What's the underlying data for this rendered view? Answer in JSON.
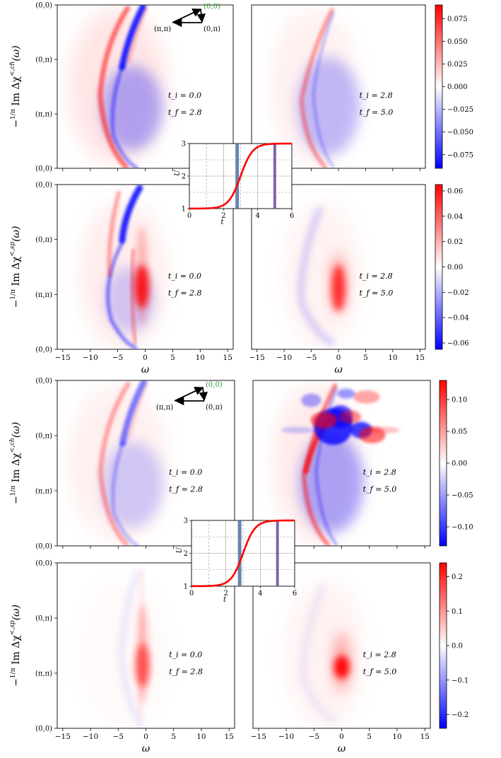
{
  "figure": {
    "x_axis_label": "ω",
    "path_points": [
      "(0,0)",
      "(0,π)",
      "(π,π)",
      "(0,0)"
    ],
    "inset_path_labels": {
      "start": "(0,0)",
      "corner": "(0,π)",
      "diag": "(π,π)"
    },
    "colors": {
      "positive": "#ff0000",
      "negative": "#0000ff",
      "zero": "#ffffff",
      "ramp": "#ff0000",
      "ti_marker": "#4f6fa0",
      "tf_marker": "#6a4b9e",
      "inset_green": "#2a9a2a"
    }
  },
  "chart_data": [
    {
      "type": "heatmap",
      "ylabel": "−(1/π) Im Δχ<,ch(ω)",
      "ylabel_parts": {
        "lead": "−",
        "num": "1",
        "den": "π",
        "main": "Im Δχ",
        "sup": "<,ch",
        "tail": "(ω)"
      },
      "x": {
        "range": [
          -16,
          16
        ],
        "ticks": [
          -15,
          -10,
          -5,
          0,
          5,
          10,
          15
        ]
      },
      "colorbar": {
        "range": [
          -0.09,
          0.09
        ],
        "ticks": [
          0.075,
          0.05,
          0.025,
          0.0,
          -0.025,
          -0.05,
          -0.075
        ],
        "tick_labels": [
          "0.075",
          "0.050",
          "0.025",
          "0.000",
          "−0.025",
          "−0.050",
          "−0.075"
        ]
      },
      "panels": [
        {
          "t_i": "t_i = 0.0",
          "t_f": "t_f = 2.8"
        },
        {
          "t_i": "t_i = 2.8",
          "t_f": "t_f = 5.0"
        }
      ],
      "show_xticks": false
    },
    {
      "type": "heatmap",
      "ylabel": "−(1/π) Im Δχ<,sp(ω)",
      "ylabel_parts": {
        "lead": "−",
        "num": "1",
        "den": "π",
        "main": "Im Δχ",
        "sup": "<,sp",
        "tail": "(ω)"
      },
      "x": {
        "range": [
          -16,
          16
        ],
        "ticks": [
          -15,
          -10,
          -5,
          0,
          5,
          10,
          15
        ]
      },
      "colorbar": {
        "range": [
          -0.065,
          0.065
        ],
        "ticks": [
          0.06,
          0.04,
          0.02,
          0.0,
          -0.02,
          -0.04,
          -0.06
        ],
        "tick_labels": [
          "0.06",
          "0.04",
          "0.02",
          "0.00",
          "−0.02",
          "−0.04",
          "−0.06"
        ]
      },
      "panels": [
        {
          "t_i": "t_i = 0.0",
          "t_f": "t_f = 2.8"
        },
        {
          "t_i": "t_i = 2.8",
          "t_f": "t_f = 5.0"
        }
      ],
      "show_xticks": true
    },
    {
      "type": "heatmap",
      "ylabel": "−(1/π) Im Δχ<,ch(ω)",
      "ylabel_parts": {
        "lead": "−",
        "num": "1",
        "den": "π",
        "main": "Im Δχ",
        "sup": "<,ch",
        "tail": "(ω)"
      },
      "x": {
        "range": [
          -16,
          16
        ],
        "ticks": [
          -15,
          -10,
          -5,
          0,
          5,
          10,
          15
        ]
      },
      "colorbar": {
        "range": [
          -0.13,
          0.13
        ],
        "ticks": [
          0.1,
          0.05,
          0.0,
          -0.05,
          -0.1
        ],
        "tick_labels": [
          "0.10",
          "0.05",
          "0.00",
          "−0.05",
          "−0.10"
        ]
      },
      "panels": [
        {
          "t_i": "t_i = 0.0",
          "t_f": "t_f = 2.8"
        },
        {
          "t_i": "t_i = 2.8",
          "t_f": "t_f = 5.0"
        }
      ],
      "show_xticks": false
    },
    {
      "type": "heatmap",
      "ylabel": "−(1/π) Im Δχ<,sp(ω)",
      "ylabel_parts": {
        "lead": "−",
        "num": "1",
        "den": "π",
        "main": "Im Δχ",
        "sup": "<,sp",
        "tail": "(ω)"
      },
      "x": {
        "range": [
          -16,
          16
        ],
        "ticks": [
          -15,
          -10,
          -5,
          0,
          5,
          10,
          15
        ]
      },
      "colorbar": {
        "range": [
          -0.24,
          0.24
        ],
        "ticks": [
          0.2,
          0.1,
          0.0,
          -0.1,
          -0.2
        ],
        "tick_labels": [
          "0.2",
          "0.1",
          "0.0",
          "−0.1",
          "−0.2"
        ]
      },
      "panels": [
        {
          "t_i": "t_i = 0.0",
          "t_f": "t_f = 2.8"
        },
        {
          "t_i": "t_i = 2.8",
          "t_f": "t_f = 5.0"
        }
      ],
      "show_xticks": true
    },
    {
      "type": "line",
      "name": "inset U(t) ramp",
      "xlabel": "t",
      "ylabel": "U",
      "xlim": [
        0,
        6
      ],
      "ylim": [
        1,
        3
      ],
      "xticks": [
        0,
        2,
        4,
        6
      ],
      "yticks": [
        1,
        2,
        3
      ],
      "ramp": {
        "U_start": 1,
        "U_end": 3,
        "t_center": 3.0,
        "width": 0.35
      },
      "markers": {
        "t_i": 2.8,
        "t_f": 5.0
      },
      "grid": true
    }
  ]
}
